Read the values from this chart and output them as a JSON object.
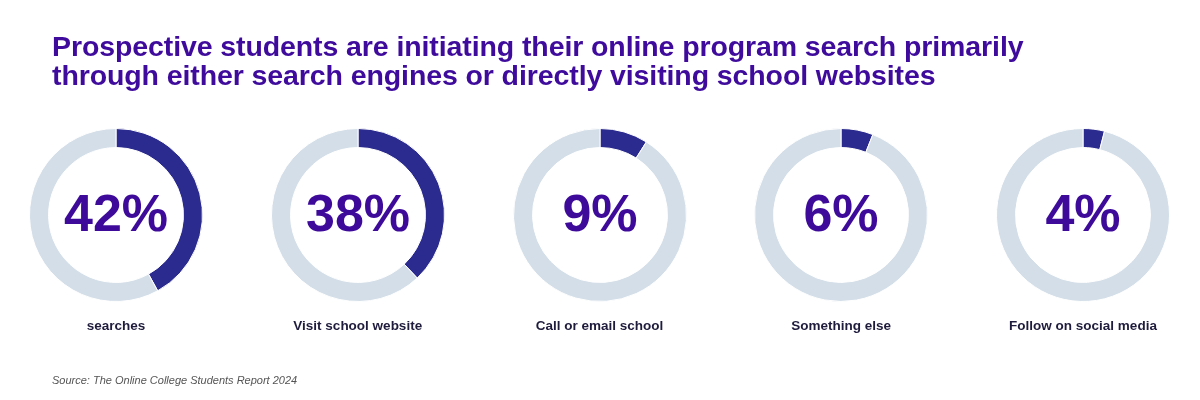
{
  "chart_data": [
    {
      "type": "donut",
      "title": "Prospective students are initiating their online program search primarily through either search engines or directly visiting school websites",
      "xlabel": "searches",
      "categories": [
        null,
        null
      ],
      "values": [
        42,
        58
      ],
      "colors": [
        "#2b2a8e",
        "#d3dee8"
      ],
      "value_labels": [
        "42%",
        null
      ],
      "legend": false,
      "annotations": [
        "Source: The Online College Students Report 2024"
      ]
    },
    {
      "type": "donut",
      "xlabel": "Visit school website",
      "categories": [
        null,
        null
      ],
      "values": [
        38,
        62
      ],
      "colors": [
        "#2b2a8e",
        "#d3dee8"
      ],
      "value_labels": [
        "38%",
        null
      ],
      "legend": false
    },
    {
      "type": "donut",
      "xlabel": "Call or email school",
      "categories": [
        null,
        null
      ],
      "values": [
        9,
        91
      ],
      "colors": [
        "#2b2a8e",
        "#d3dee8"
      ],
      "value_labels": [
        "9%",
        null
      ],
      "legend": false
    },
    {
      "type": "donut",
      "xlabel": "Something else",
      "categories": [
        null,
        null
      ],
      "values": [
        6,
        94
      ],
      "colors": [
        "#2b2a8e",
        "#d3dee8"
      ],
      "value_labels": [
        "6%",
        null
      ],
      "legend": false
    },
    {
      "type": "donut",
      "xlabel": "Follow on social media",
      "categories": [
        null,
        null
      ],
      "values": [
        4,
        96
      ],
      "colors": [
        "#2b2a8e",
        "#d3dee8"
      ],
      "value_labels": [
        "4%",
        null
      ],
      "legend": false
    }
  ]
}
